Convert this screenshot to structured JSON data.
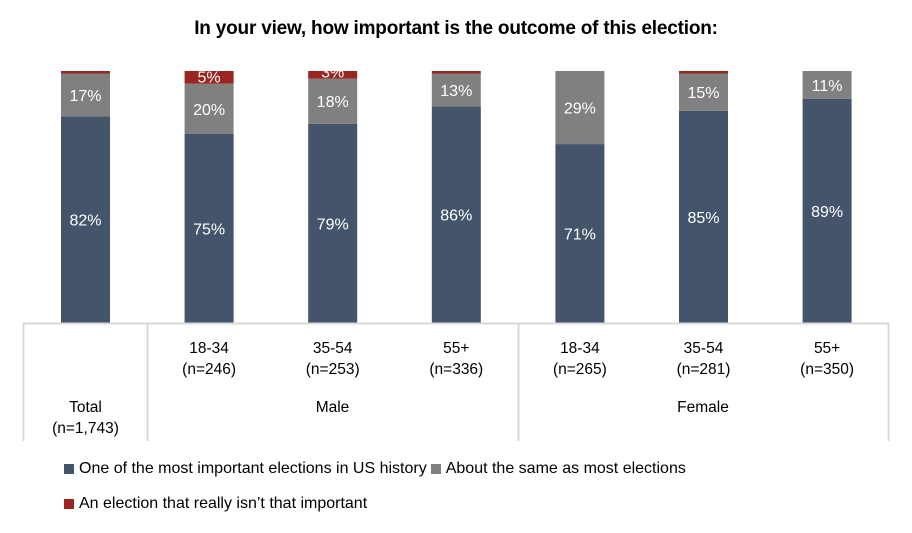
{
  "chart_data": {
    "type": "bar",
    "stacked": true,
    "orientation": "vertical",
    "title": "In your view, how important is the outcome of this election:",
    "xlabel": "",
    "ylabel": "",
    "ylim": [
      0,
      100
    ],
    "grid": false,
    "categories": [
      {
        "label": "Total",
        "n": "(n=1,743)",
        "group": ""
      },
      {
        "label": "18-34",
        "n": "(n=246)",
        "group": "Male"
      },
      {
        "label": "35-54",
        "n": "(n=253)",
        "group": "Male"
      },
      {
        "label": "55+",
        "n": "(n=336)",
        "group": "Male"
      },
      {
        "label": "18-34",
        "n": "(n=265)",
        "group": "Female"
      },
      {
        "label": "35-54",
        "n": "(n=281)",
        "group": "Female"
      },
      {
        "label": "55+",
        "n": "(n=350)",
        "group": "Female"
      }
    ],
    "groups": [
      "Male",
      "Female"
    ],
    "series": [
      {
        "name": "One of the most important elections in US history",
        "color": "#44546A",
        "values": [
          82,
          75,
          79,
          86,
          71,
          85,
          89
        ],
        "labels": [
          "82%",
          "75%",
          "79%",
          "86%",
          "71%",
          "85%",
          "89%"
        ]
      },
      {
        "name": "About the same as most elections",
        "color": "#808080",
        "values": [
          17,
          20,
          18,
          13,
          29,
          15,
          11
        ],
        "labels": [
          "17%",
          "20%",
          "18%",
          "13%",
          "29%",
          "15%",
          "11%"
        ]
      },
      {
        "name": "An election that really isn’t that important",
        "color": "#9B2520",
        "values": [
          1,
          5,
          3,
          1,
          0,
          1,
          0
        ],
        "labels": [
          "",
          "5%",
          "3%",
          "",
          "",
          "",
          ""
        ]
      }
    ],
    "legend_position": "bottom-left"
  }
}
